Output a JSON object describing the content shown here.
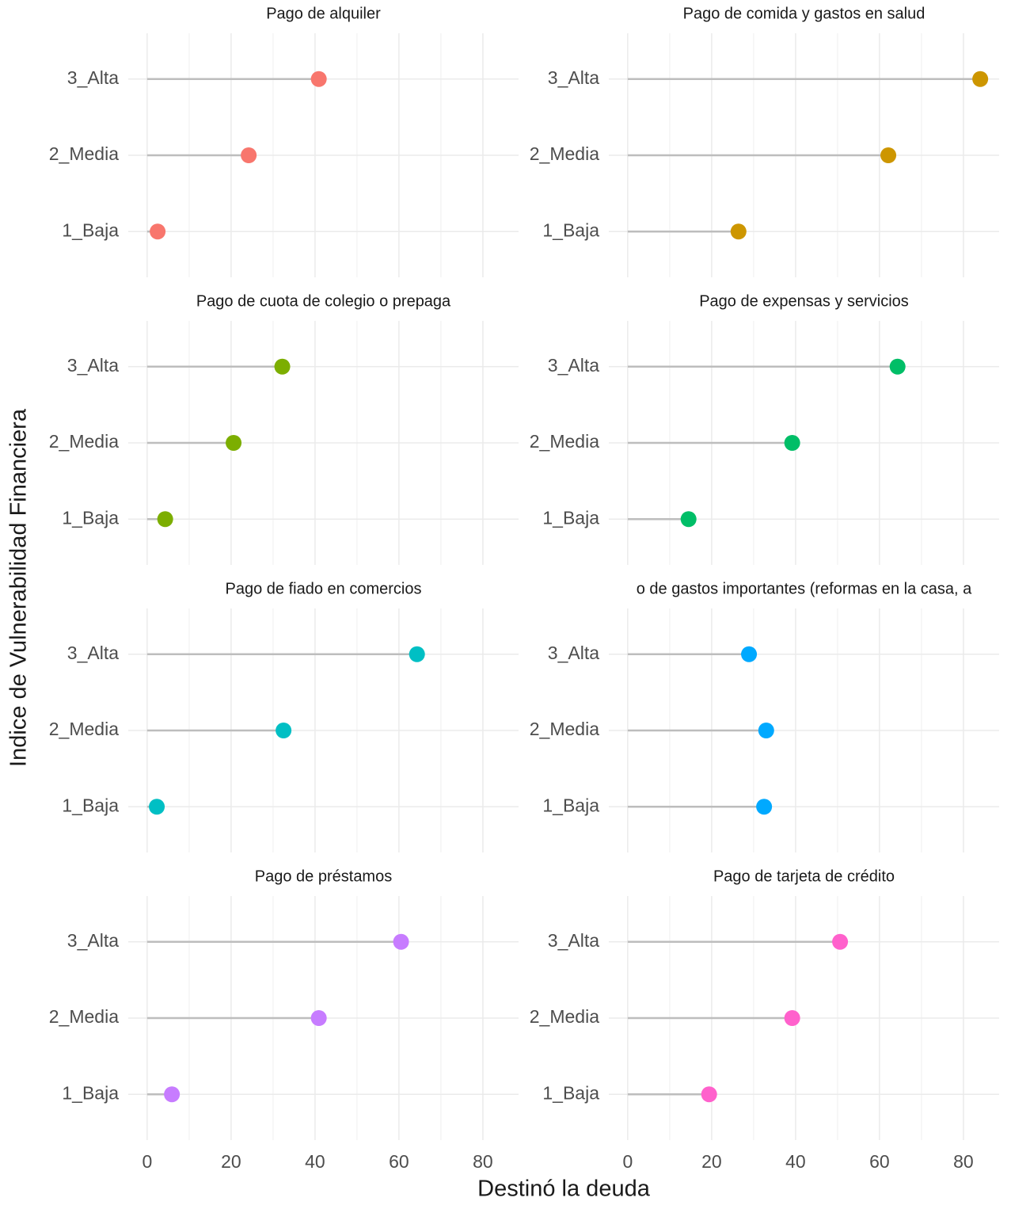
{
  "xlabel": "Destinó la deuda",
  "ylabel": "Indice de Vulnerabilidad Financiera",
  "chart_data": [
    {
      "type": "lollipop",
      "title": "Pago de alquiler",
      "categories": [
        "1_Baja",
        "2_Media",
        "3_Alta"
      ],
      "values": [
        2.5,
        24.2,
        40.9
      ],
      "color": "#F8766D",
      "xlim": [
        -4.5,
        88.5
      ],
      "xticks": [
        0,
        20,
        40,
        60,
        80
      ],
      "xminor": [
        10,
        30,
        50,
        70
      ],
      "grid": true
    },
    {
      "type": "lollipop",
      "title": "Pago de comida y gastos en salud",
      "categories": [
        "1_Baja",
        "2_Media",
        "3_Alta"
      ],
      "values": [
        26.4,
        62.1,
        84.0
      ],
      "color": "#CD9600",
      "xlim": [
        -4.5,
        88.5
      ],
      "xticks": [
        0,
        20,
        40,
        60,
        80
      ],
      "xminor": [
        10,
        30,
        50,
        70
      ],
      "grid": true
    },
    {
      "type": "lollipop",
      "title": "Pago de cuota de colegio o prepaga",
      "categories": [
        "1_Baja",
        "2_Media",
        "3_Alta"
      ],
      "values": [
        4.3,
        20.6,
        32.2
      ],
      "color": "#7CAE00",
      "xlim": [
        -4.5,
        88.5
      ],
      "xticks": [
        0,
        20,
        40,
        60,
        80
      ],
      "xminor": [
        10,
        30,
        50,
        70
      ],
      "grid": true
    },
    {
      "type": "lollipop",
      "title": "Pago de expensas y servicios",
      "categories": [
        "1_Baja",
        "2_Media",
        "3_Alta"
      ],
      "values": [
        14.5,
        39.2,
        64.3
      ],
      "color": "#00BE67",
      "xlim": [
        -4.5,
        88.5
      ],
      "xticks": [
        0,
        20,
        40,
        60,
        80
      ],
      "xminor": [
        10,
        30,
        50,
        70
      ],
      "grid": true
    },
    {
      "type": "lollipop",
      "title": "Pago de fiado en comercios",
      "categories": [
        "1_Baja",
        "2_Media",
        "3_Alta"
      ],
      "values": [
        2.3,
        32.5,
        64.3
      ],
      "color": "#00BFC4",
      "xlim": [
        -4.5,
        88.5
      ],
      "xticks": [
        0,
        20,
        40,
        60,
        80
      ],
      "xminor": [
        10,
        30,
        50,
        70
      ],
      "grid": true
    },
    {
      "type": "lollipop",
      "title": "o de gastos importantes (reformas en la casa, a",
      "categories": [
        "1_Baja",
        "2_Media",
        "3_Alta"
      ],
      "values": [
        32.5,
        33.0,
        28.9
      ],
      "color": "#00A9FF",
      "xlim": [
        -4.5,
        88.5
      ],
      "xticks": [
        0,
        20,
        40,
        60,
        80
      ],
      "xminor": [
        10,
        30,
        50,
        70
      ],
      "grid": true
    },
    {
      "type": "lollipop",
      "title": "Pago de préstamos",
      "categories": [
        "1_Baja",
        "2_Media",
        "3_Alta"
      ],
      "values": [
        5.9,
        40.9,
        60.5
      ],
      "color": "#C77CFF",
      "xlim": [
        -4.5,
        88.5
      ],
      "xticks": [
        0,
        20,
        40,
        60,
        80
      ],
      "xminor": [
        10,
        30,
        50,
        70
      ],
      "grid": true
    },
    {
      "type": "lollipop",
      "title": "Pago de tarjeta de crédito",
      "categories": [
        "1_Baja",
        "2_Media",
        "3_Alta"
      ],
      "values": [
        19.4,
        39.2,
        50.6
      ],
      "color": "#FF61CC",
      "xlim": [
        -4.5,
        88.5
      ],
      "xticks": [
        0,
        20,
        40,
        60,
        80
      ],
      "xminor": [
        10,
        30,
        50,
        70
      ],
      "grid": true
    }
  ]
}
